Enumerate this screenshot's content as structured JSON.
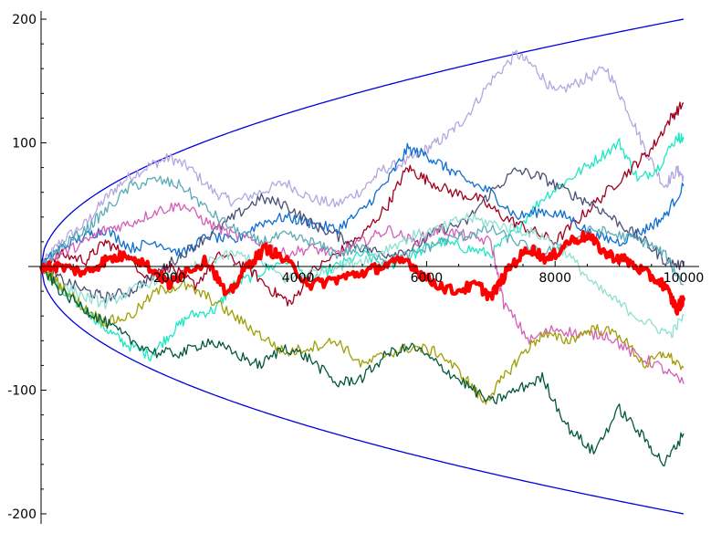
{
  "chart_data": {
    "type": "line",
    "title": "",
    "xlabel": "",
    "ylabel": "",
    "xlim": [
      0,
      10000
    ],
    "ylim": [
      -200,
      200
    ],
    "grid": false,
    "x_ticks": [
      {
        "value": 2000,
        "label": "2000"
      },
      {
        "value": 4000,
        "label": "4000"
      },
      {
        "value": 6000,
        "label": "6000"
      },
      {
        "value": 8000,
        "label": "8000"
      },
      {
        "value": 10000,
        "label": "10000"
      }
    ],
    "y_ticks": [
      {
        "value": 200,
        "label": "200"
      },
      {
        "value": 100,
        "label": "100"
      },
      {
        "value": -100,
        "label": "-100"
      },
      {
        "value": -200,
        "label": "-200"
      }
    ],
    "envelope": {
      "formula": "±2·sqrt(x)",
      "color": "#0000dd"
    },
    "series": [
      {
        "color": "#b3a8e0",
        "points": [
          [
            0,
            0
          ],
          [
            300,
            20
          ],
          [
            700,
            35
          ],
          [
            1000,
            55
          ],
          [
            1300,
            70
          ],
          [
            1700,
            82
          ],
          [
            2000,
            88
          ],
          [
            2300,
            80
          ],
          [
            2700,
            60
          ],
          [
            3000,
            52
          ],
          [
            3400,
            60
          ],
          [
            3800,
            68
          ],
          [
            4200,
            55
          ],
          [
            4600,
            50
          ],
          [
            5000,
            62
          ],
          [
            5300,
            78
          ],
          [
            5700,
            85
          ],
          [
            6000,
            95
          ],
          [
            6300,
            105
          ],
          [
            6600,
            120
          ],
          [
            7000,
            150
          ],
          [
            7400,
            172
          ],
          [
            7700,
            160
          ],
          [
            8000,
            140
          ],
          [
            8400,
            150
          ],
          [
            8800,
            160
          ],
          [
            9100,
            130
          ],
          [
            9400,
            95
          ],
          [
            9700,
            65
          ],
          [
            9900,
            78
          ],
          [
            10000,
            72
          ]
        ]
      },
      {
        "color": "#1ee8c4",
        "points": [
          [
            0,
            0
          ],
          [
            300,
            -20
          ],
          [
            700,
            -35
          ],
          [
            1000,
            -50
          ],
          [
            1300,
            -62
          ],
          [
            1700,
            -72
          ],
          [
            2000,
            -55
          ],
          [
            2300,
            -40
          ],
          [
            2700,
            -35
          ],
          [
            3000,
            -15
          ],
          [
            3400,
            -5
          ],
          [
            3800,
            5
          ],
          [
            4200,
            -10
          ],
          [
            4600,
            0
          ],
          [
            5000,
            10
          ],
          [
            5400,
            0
          ],
          [
            5800,
            10
          ],
          [
            6200,
            20
          ],
          [
            6600,
            15
          ],
          [
            7000,
            10
          ],
          [
            7400,
            30
          ],
          [
            7800,
            55
          ],
          [
            8200,
            70
          ],
          [
            8600,
            85
          ],
          [
            9000,
            100
          ],
          [
            9300,
            70
          ],
          [
            9600,
            80
          ],
          [
            9900,
            105
          ],
          [
            10000,
            103
          ]
        ]
      },
      {
        "color": "#a0001e",
        "points": [
          [
            0,
            0
          ],
          [
            300,
            10
          ],
          [
            700,
            5
          ],
          [
            1000,
            20
          ],
          [
            1300,
            10
          ],
          [
            1700,
            -10
          ],
          [
            2000,
            0
          ],
          [
            2400,
            -15
          ],
          [
            2800,
            10
          ],
          [
            3200,
            0
          ],
          [
            3600,
            -20
          ],
          [
            3900,
            -30
          ],
          [
            4200,
            -5
          ],
          [
            4600,
            10
          ],
          [
            5000,
            25
          ],
          [
            5400,
            50
          ],
          [
            5700,
            80
          ],
          [
            6000,
            70
          ],
          [
            6400,
            60
          ],
          [
            6800,
            55
          ],
          [
            7200,
            40
          ],
          [
            7600,
            30
          ],
          [
            8000,
            20
          ],
          [
            8400,
            40
          ],
          [
            8800,
            60
          ],
          [
            9200,
            80
          ],
          [
            9500,
            95
          ],
          [
            9800,
            120
          ],
          [
            10000,
            132
          ]
        ]
      },
      {
        "color": "#0f6ed0",
        "points": [
          [
            0,
            0
          ],
          [
            300,
            15
          ],
          [
            700,
            25
          ],
          [
            1000,
            30
          ],
          [
            1400,
            15
          ],
          [
            1800,
            20
          ],
          [
            2200,
            10
          ],
          [
            2600,
            25
          ],
          [
            3000,
            20
          ],
          [
            3400,
            35
          ],
          [
            3800,
            40
          ],
          [
            4200,
            35
          ],
          [
            4600,
            30
          ],
          [
            5000,
            45
          ],
          [
            5400,
            70
          ],
          [
            5700,
            95
          ],
          [
            6000,
            90
          ],
          [
            6300,
            80
          ],
          [
            6600,
            70
          ],
          [
            7000,
            60
          ],
          [
            7400,
            40
          ],
          [
            7800,
            45
          ],
          [
            8200,
            40
          ],
          [
            8600,
            25
          ],
          [
            9000,
            20
          ],
          [
            9400,
            30
          ],
          [
            9700,
            40
          ],
          [
            10000,
            65
          ]
        ]
      },
      {
        "color": "#4a5078",
        "points": [
          [
            0,
            0
          ],
          [
            300,
            -10
          ],
          [
            700,
            -20
          ],
          [
            1000,
            -25
          ],
          [
            1400,
            -20
          ],
          [
            1800,
            -5
          ],
          [
            2200,
            10
          ],
          [
            2600,
            25
          ],
          [
            3000,
            40
          ],
          [
            3400,
            55
          ],
          [
            3800,
            50
          ],
          [
            4200,
            35
          ],
          [
            4600,
            25
          ],
          [
            5000,
            15
          ],
          [
            5400,
            10
          ],
          [
            5800,
            15
          ],
          [
            6200,
            30
          ],
          [
            6600,
            35
          ],
          [
            7000,
            60
          ],
          [
            7400,
            78
          ],
          [
            7800,
            72
          ],
          [
            8200,
            60
          ],
          [
            8600,
            50
          ],
          [
            9000,
            35
          ],
          [
            9400,
            20
          ],
          [
            9700,
            5
          ],
          [
            10000,
            0
          ]
        ]
      },
      {
        "color": "#d460b8",
        "points": [
          [
            0,
            0
          ],
          [
            300,
            10
          ],
          [
            700,
            20
          ],
          [
            1000,
            30
          ],
          [
            1400,
            35
          ],
          [
            1800,
            45
          ],
          [
            2200,
            50
          ],
          [
            2600,
            35
          ],
          [
            3000,
            25
          ],
          [
            3400,
            20
          ],
          [
            3800,
            10
          ],
          [
            4200,
            15
          ],
          [
            4600,
            10
          ],
          [
            5000,
            20
          ],
          [
            5400,
            30
          ],
          [
            5800,
            20
          ],
          [
            6200,
            30
          ],
          [
            6600,
            25
          ],
          [
            7000,
            20
          ],
          [
            7200,
            -30
          ],
          [
            7600,
            -60
          ],
          [
            8000,
            -50
          ],
          [
            8400,
            -55
          ],
          [
            8800,
            -55
          ],
          [
            9200,
            -70
          ],
          [
            9600,
            -80
          ],
          [
            10000,
            -95
          ]
        ]
      },
      {
        "color": "#5aaab8",
        "points": [
          [
            0,
            0
          ],
          [
            300,
            15
          ],
          [
            700,
            30
          ],
          [
            1000,
            45
          ],
          [
            1400,
            65
          ],
          [
            1800,
            70
          ],
          [
            2200,
            65
          ],
          [
            2600,
            45
          ],
          [
            3000,
            30
          ],
          [
            3400,
            20
          ],
          [
            3800,
            25
          ],
          [
            4200,
            20
          ],
          [
            4600,
            10
          ],
          [
            5000,
            15
          ],
          [
            5400,
            5
          ],
          [
            5800,
            10
          ],
          [
            6200,
            20
          ],
          [
            6600,
            25
          ],
          [
            7000,
            30
          ],
          [
            7400,
            20
          ],
          [
            7800,
            10
          ],
          [
            8200,
            20
          ],
          [
            8600,
            30
          ],
          [
            9000,
            25
          ],
          [
            9400,
            20
          ],
          [
            9700,
            10
          ],
          [
            10000,
            -15
          ]
        ]
      },
      {
        "color": "#90e0d2",
        "points": [
          [
            0,
            0
          ],
          [
            300,
            -15
          ],
          [
            700,
            -25
          ],
          [
            1000,
            -30
          ],
          [
            1400,
            -20
          ],
          [
            1800,
            -10
          ],
          [
            2200,
            -5
          ],
          [
            2600,
            5
          ],
          [
            3000,
            10
          ],
          [
            3400,
            5
          ],
          [
            3800,
            -10
          ],
          [
            4200,
            -5
          ],
          [
            4600,
            0
          ],
          [
            5000,
            5
          ],
          [
            5400,
            15
          ],
          [
            5800,
            25
          ],
          [
            6200,
            30
          ],
          [
            6600,
            40
          ],
          [
            7000,
            35
          ],
          [
            7400,
            30
          ],
          [
            7800,
            25
          ],
          [
            8200,
            10
          ],
          [
            8600,
            -15
          ],
          [
            9000,
            -30
          ],
          [
            9400,
            -45
          ],
          [
            9800,
            -55
          ],
          [
            10000,
            -40
          ]
        ]
      },
      {
        "color": "#a09e06",
        "points": [
          [
            0,
            0
          ],
          [
            300,
            -15
          ],
          [
            700,
            -35
          ],
          [
            1000,
            -45
          ],
          [
            1400,
            -40
          ],
          [
            1800,
            -20
          ],
          [
            2200,
            -15
          ],
          [
            2600,
            -25
          ],
          [
            3000,
            -40
          ],
          [
            3400,
            -55
          ],
          [
            3800,
            -70
          ],
          [
            4200,
            -65
          ],
          [
            4600,
            -60
          ],
          [
            5000,
            -80
          ],
          [
            5400,
            -70
          ],
          [
            5800,
            -65
          ],
          [
            6200,
            -70
          ],
          [
            6600,
            -90
          ],
          [
            6900,
            -110
          ],
          [
            7200,
            -90
          ],
          [
            7500,
            -70
          ],
          [
            7800,
            -55
          ],
          [
            8200,
            -60
          ],
          [
            8600,
            -50
          ],
          [
            9000,
            -55
          ],
          [
            9400,
            -80
          ],
          [
            9700,
            -70
          ],
          [
            10000,
            -82
          ]
        ]
      },
      {
        "color": "#04583a",
        "points": [
          [
            0,
            0
          ],
          [
            300,
            -20
          ],
          [
            700,
            -35
          ],
          [
            1000,
            -45
          ],
          [
            1400,
            -60
          ],
          [
            1800,
            -70
          ],
          [
            2200,
            -70
          ],
          [
            2600,
            -60
          ],
          [
            3000,
            -70
          ],
          [
            3400,
            -80
          ],
          [
            3800,
            -65
          ],
          [
            4200,
            -75
          ],
          [
            4600,
            -95
          ],
          [
            5000,
            -90
          ],
          [
            5400,
            -70
          ],
          [
            5800,
            -65
          ],
          [
            6200,
            -80
          ],
          [
            6600,
            -95
          ],
          [
            7000,
            -110
          ],
          [
            7400,
            -100
          ],
          [
            7800,
            -90
          ],
          [
            8200,
            -130
          ],
          [
            8600,
            -150
          ],
          [
            9000,
            -115
          ],
          [
            9400,
            -140
          ],
          [
            9700,
            -160
          ],
          [
            10000,
            -135
          ]
        ]
      },
      {
        "color": "#ff0000",
        "width": 4.2,
        "points": [
          [
            0,
            0
          ],
          [
            300,
            0
          ],
          [
            700,
            -5
          ],
          [
            1000,
            5
          ],
          [
            1400,
            10
          ],
          [
            1800,
            -5
          ],
          [
            2000,
            -15
          ],
          [
            2200,
            -5
          ],
          [
            2600,
            5
          ],
          [
            2900,
            -25
          ],
          [
            3200,
            0
          ],
          [
            3500,
            15
          ],
          [
            3800,
            5
          ],
          [
            4200,
            -15
          ],
          [
            4600,
            -10
          ],
          [
            5000,
            -5
          ],
          [
            5300,
            0
          ],
          [
            5700,
            5
          ],
          [
            6000,
            -10
          ],
          [
            6400,
            -20
          ],
          [
            6800,
            -15
          ],
          [
            7000,
            -25
          ],
          [
            7300,
            0
          ],
          [
            7600,
            15
          ],
          [
            7900,
            5
          ],
          [
            8200,
            20
          ],
          [
            8500,
            25
          ],
          [
            8800,
            10
          ],
          [
            9100,
            5
          ],
          [
            9400,
            -5
          ],
          [
            9700,
            -15
          ],
          [
            9900,
            -35
          ],
          [
            10000,
            -25
          ]
        ]
      }
    ]
  }
}
